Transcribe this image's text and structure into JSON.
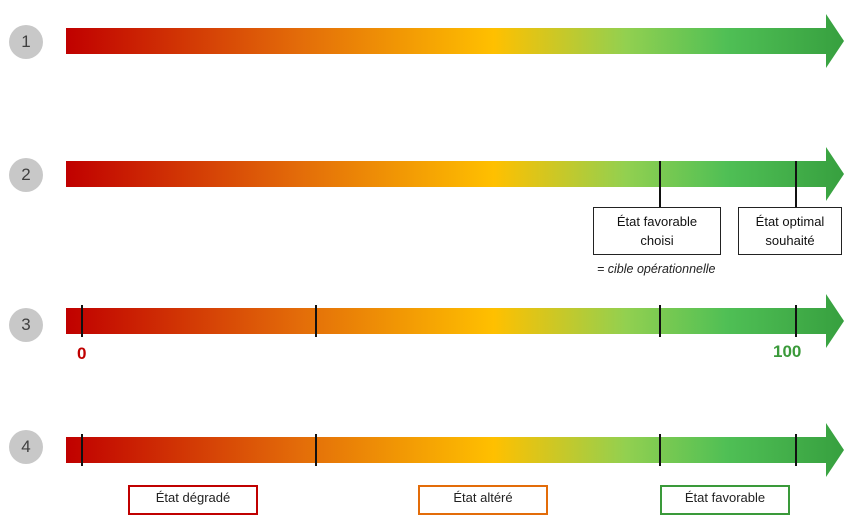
{
  "steps": [
    "1",
    "2",
    "3",
    "4"
  ],
  "gradient_colors": [
    "#c00000",
    "#e36c09",
    "#ffc000",
    "#92d050",
    "#4fbf55",
    "#37a03f"
  ],
  "row2": {
    "box_favorable": [
      "État favorable",
      "choisi"
    ],
    "box_optimal": [
      "État optimal",
      "souhaité"
    ],
    "note": "= cible opérationnelle"
  },
  "row3": {
    "min_label": "0",
    "max_label": "100",
    "min_color": "#c00000",
    "max_color": "#3a9a3a"
  },
  "row4": {
    "states": [
      {
        "label": "État dégradé",
        "color": "#c00000"
      },
      {
        "label": "État altéré",
        "color": "#e36c09"
      },
      {
        "label": "État favorable",
        "color": "#3a9a3a"
      }
    ]
  }
}
